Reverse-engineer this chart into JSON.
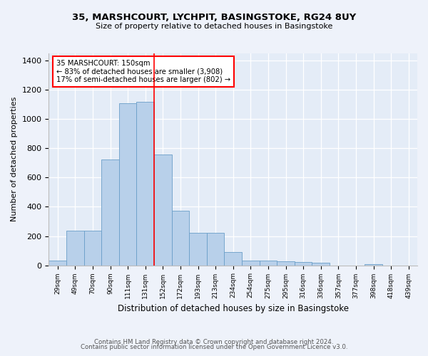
{
  "title_line1": "35, MARSHCOURT, LYCHPIT, BASINGSTOKE, RG24 8UY",
  "title_line2": "Size of property relative to detached houses in Basingstoke",
  "xlabel": "Distribution of detached houses by size in Basingstoke",
  "ylabel": "Number of detached properties",
  "categories": [
    "29sqm",
    "49sqm",
    "70sqm",
    "90sqm",
    "111sqm",
    "131sqm",
    "152sqm",
    "172sqm",
    "193sqm",
    "213sqm",
    "234sqm",
    "254sqm",
    "275sqm",
    "295sqm",
    "316sqm",
    "336sqm",
    "357sqm",
    "377sqm",
    "398sqm",
    "418sqm",
    "439sqm"
  ],
  "bar_heights": [
    30,
    235,
    235,
    725,
    1110,
    1120,
    760,
    375,
    220,
    220,
    90,
    30,
    30,
    25,
    20,
    15,
    0,
    0,
    10,
    0,
    0
  ],
  "bar_color": "#b8d0ea",
  "bar_edge_color": "#6a9ec8",
  "vline_x_index": 5.5,
  "vline_color": "red",
  "annotation_text": "35 MARSHCOURT: 150sqm\n← 83% of detached houses are smaller (3,908)\n17% of semi-detached houses are larger (802) →",
  "annotation_box_color": "white",
  "annotation_box_edge_color": "red",
  "ylim": [
    0,
    1450
  ],
  "yticks": [
    0,
    200,
    400,
    600,
    800,
    1000,
    1200,
    1400
  ],
  "footer_line1": "Contains HM Land Registry data © Crown copyright and database right 2024.",
  "footer_line2": "Contains public sector information licensed under the Open Government Licence v3.0.",
  "background_color": "#eef2fa",
  "plot_background_color": "#e4ecf7",
  "grid_color": "white"
}
